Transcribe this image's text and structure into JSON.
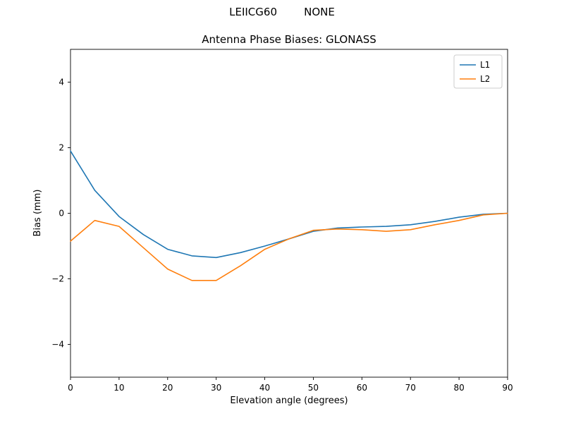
{
  "chart_data": {
    "type": "line",
    "suptitle": "LEIICG60        NONE",
    "title": "Antenna Phase Biases: GLONASS",
    "xlabel": "Elevation angle (degrees)",
    "ylabel": "Bias (mm)",
    "xlim": [
      0,
      90
    ],
    "ylim": [
      -5,
      5
    ],
    "xticks": [
      0,
      10,
      20,
      30,
      40,
      50,
      60,
      70,
      80,
      90
    ],
    "yticks": [
      -4,
      -2,
      0,
      2,
      4
    ],
    "grid": false,
    "legend_position": "upper right",
    "x": [
      0,
      5,
      10,
      15,
      20,
      25,
      30,
      35,
      40,
      45,
      50,
      55,
      60,
      65,
      70,
      75,
      80,
      85,
      90
    ],
    "series": [
      {
        "name": "L1",
        "color": "#1f77b4",
        "values": [
          1.9,
          0.7,
          -0.1,
          -0.65,
          -1.1,
          -1.3,
          -1.35,
          -1.2,
          -1.0,
          -0.78,
          -0.55,
          -0.45,
          -0.42,
          -0.4,
          -0.35,
          -0.25,
          -0.12,
          -0.03,
          0.0
        ]
      },
      {
        "name": "L2",
        "color": "#ff7f0e",
        "values": [
          -0.85,
          -0.22,
          -0.4,
          -1.05,
          -1.7,
          -2.05,
          -2.05,
          -1.6,
          -1.1,
          -0.78,
          -0.52,
          -0.48,
          -0.5,
          -0.55,
          -0.5,
          -0.35,
          -0.22,
          -0.05,
          0.0
        ]
      }
    ]
  }
}
